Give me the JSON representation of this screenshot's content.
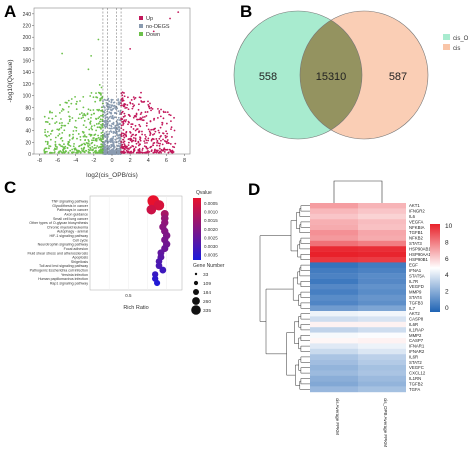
{
  "panels": {
    "a": "A",
    "b": "B",
    "c": "C",
    "d": "D"
  },
  "chart_data": [
    {
      "type": "scatter",
      "panel": "A",
      "xlabel": "log2(cis_OPB/cis)",
      "ylabel": "-log10(Qvalue)",
      "xticks": [
        -8,
        -6,
        -4,
        -2,
        0,
        2,
        4,
        6,
        8
      ],
      "yticks": [
        0,
        20,
        40,
        60,
        80,
        100,
        120,
        140,
        160,
        180,
        200,
        220,
        240
      ],
      "xlim": [
        -8.6,
        8.6
      ],
      "ylim": [
        0,
        250
      ],
      "threshold_lines_x": [
        -1,
        -0.5,
        0.5,
        1
      ],
      "legend_position": "top-right",
      "series": [
        {
          "name": "Up",
          "color": "#c2185b"
        },
        {
          "name": "no-DEGS",
          "color": "#8a9bb0"
        },
        {
          "name": "Down",
          "color": "#6cc04a"
        }
      ]
    },
    {
      "type": "venn",
      "panel": "B",
      "sets": [
        {
          "name": "cis_O",
          "color": "#a8ebcf"
        },
        {
          "name": "cis",
          "color": "#f9c5a8"
        }
      ],
      "values": {
        "left_only": "558",
        "intersection": "15310",
        "right_only": "587"
      },
      "legend_position": "right"
    },
    {
      "type": "scatter",
      "panel": "C",
      "xlabel": "Rich Ratio",
      "xticks": [
        "0.5"
      ],
      "categories": [
        "TNF signaling pathway",
        "Glycolithesis in cancer",
        "Pathways in cancer",
        "Axon guidance",
        "Small cell lung cancer",
        "Other types of O-glycan biosynthesis",
        "Chronic myeloid leukemia",
        "Autophagy - animal",
        "HIF-1 signaling pathway",
        "Cell cycle",
        "Neurotrophin signaling pathway",
        "Focal adhesion",
        "Fluid shear stress and atherosclerosis",
        "Apoptosis",
        "Shigellosis",
        "Toll and Imd signaling pathway",
        "Pathogenic Escherichia coli infection",
        "Yersinia infection",
        "Human papillomavirus infection",
        "Rap1 signaling pathway"
      ],
      "rich_ratio": [
        0.63,
        0.66,
        0.62,
        0.69,
        0.69,
        0.69,
        0.68,
        0.69,
        0.7,
        0.69,
        0.7,
        0.69,
        0.67,
        0.67,
        0.66,
        0.66,
        0.68,
        0.64,
        0.64,
        0.65
      ],
      "qvalue": [
        0.0001,
        0.0004,
        0.0006,
        0.0012,
        0.0015,
        0.0016,
        0.0017,
        0.0018,
        0.0019,
        0.002,
        0.0021,
        0.0022,
        0.0024,
        0.0025,
        0.0027,
        0.0028,
        0.003,
        0.0031,
        0.0033,
        0.0035
      ],
      "gene_number": [
        330,
        250,
        200,
        110,
        100,
        90,
        80,
        85,
        90,
        80,
        85,
        80,
        70,
        70,
        60,
        60,
        65,
        50,
        50,
        45
      ],
      "color_legend": {
        "title": "Qvalue",
        "ticks": [
          "0.0005",
          "0.0010",
          "0.0015",
          "0.0020",
          "0.0025",
          "0.0030",
          "0.0035"
        ],
        "low_color": "#e8112d",
        "high_color": "#1a1adb"
      },
      "size_legend": {
        "title": "Gene Number",
        "ticks": [
          "33",
          "109",
          "184",
          "260",
          "335"
        ]
      }
    },
    {
      "type": "heatmap",
      "panel": "D",
      "columns": [
        "cis Average FPKM",
        "cis_OPB Average FPKM"
      ],
      "rows": [
        "AKT1",
        "IFNGR2",
        "IL6",
        "VEGFA",
        "NFKBIA",
        "TGFB1",
        "NFKB2",
        "STAT3",
        "HSP90AB1",
        "HSP90AA1",
        "HSP90B1",
        "EGF",
        "IFNA1",
        "STAT5A",
        "IL7R",
        "VEGFD",
        "MMP9",
        "STAT4",
        "TGFB3",
        "IL7",
        "AKT2",
        "CASP8",
        "IL6R",
        "IL1RAP",
        "MMP2",
        "CASP7",
        "IFNAR1",
        "IFNAR2",
        "IL6R",
        "STAT2",
        "VEGFC",
        "CXCL12",
        "IL1RN",
        "TGFB2",
        "TGFA"
      ],
      "legend_ticks": [
        "10",
        "8",
        "6",
        "4",
        "2",
        "0"
      ],
      "color_range": [
        0,
        10
      ],
      "values": [
        [
          7.2,
          6.7
        ],
        [
          6.6,
          6.3
        ],
        [
          6.3,
          6.0
        ],
        [
          6.8,
          6.5
        ],
        [
          6.9,
          6.4
        ],
        [
          7.5,
          7.0
        ],
        [
          7.3,
          6.9
        ],
        [
          8.2,
          7.9
        ],
        [
          9.8,
          9.7
        ],
        [
          10.0,
          9.9
        ],
        [
          9.5,
          9.4
        ],
        [
          0.5,
          0.8
        ],
        [
          0.8,
          1.0
        ],
        [
          1.0,
          1.3
        ],
        [
          0.7,
          1.2
        ],
        [
          1.2,
          1.5
        ],
        [
          0.9,
          1.3
        ],
        [
          1.3,
          1.6
        ],
        [
          1.1,
          1.4
        ],
        [
          1.8,
          2.1
        ],
        [
          4.6,
          4.7
        ],
        [
          3.9,
          4.1
        ],
        [
          5.3,
          5.3
        ],
        [
          3.6,
          3.9
        ],
        [
          4.8,
          4.9
        ],
        [
          5.2,
          5.3
        ],
        [
          4.3,
          4.6
        ],
        [
          3.8,
          4.2
        ],
        [
          3.1,
          3.5
        ],
        [
          2.9,
          3.3
        ],
        [
          2.6,
          3.0
        ],
        [
          2.8,
          3.1
        ],
        [
          2.4,
          2.8
        ],
        [
          2.2,
          2.6
        ],
        [
          2.7,
          3.0
        ]
      ]
    }
  ]
}
